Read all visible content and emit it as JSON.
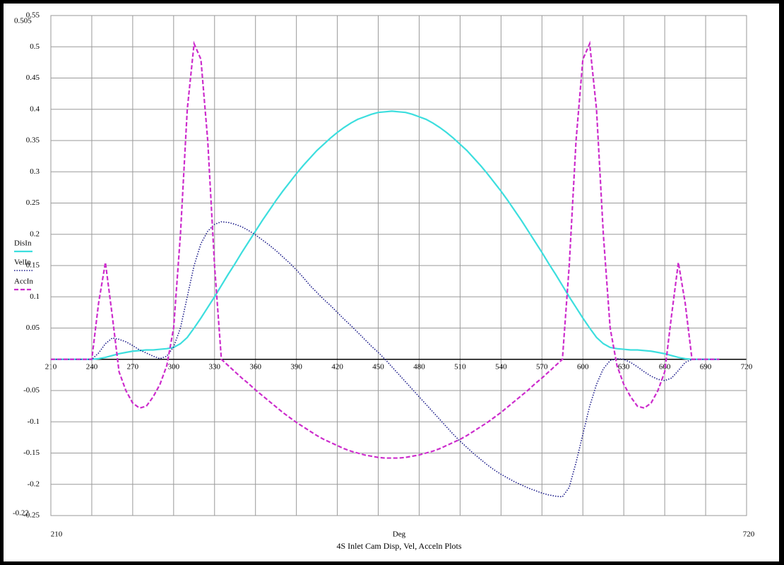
{
  "chart_data": {
    "type": "line",
    "title": "4S Inlet Cam Disp, Vel, Acceln Plots",
    "x_label": "Deg",
    "annotations": [
      "0.505",
      "-0.22"
    ],
    "xlim": [
      210,
      720
    ],
    "ylim": [
      -0.25,
      0.55
    ],
    "xticks": [
      210,
      240,
      270,
      300,
      330,
      360,
      390,
      420,
      450,
      480,
      510,
      540,
      570,
      600,
      630,
      660,
      690,
      720
    ],
    "yticks": [
      0.55,
      0.5,
      0.45,
      0.4,
      0.35,
      0.3,
      0.25,
      0.2,
      0.15,
      0.1,
      0.05,
      -0.05,
      -0.1,
      -0.15,
      -0.2,
      -0.25
    ],
    "grid": true,
    "legend": "left",
    "x": [
      210,
      220,
      230,
      240,
      245,
      250,
      255,
      260,
      265,
      270,
      275,
      280,
      285,
      290,
      295,
      300,
      305,
      310,
      315,
      320,
      325,
      330,
      335,
      340,
      345,
      350,
      355,
      360,
      365,
      370,
      375,
      380,
      385,
      390,
      395,
      400,
      405,
      410,
      415,
      420,
      425,
      430,
      435,
      440,
      445,
      450,
      455,
      460,
      465,
      470,
      475,
      480,
      485,
      490,
      495,
      500,
      505,
      510,
      515,
      520,
      525,
      530,
      535,
      540,
      545,
      550,
      555,
      560,
      565,
      570,
      575,
      580,
      585,
      590,
      595,
      600,
      605,
      610,
      615,
      620,
      625,
      630,
      635,
      640,
      645,
      650,
      655,
      660,
      665,
      670,
      675,
      680,
      690,
      700
    ],
    "series": [
      {
        "name": "DisIn",
        "color": "#3cdede",
        "style": "solid",
        "values": [
          0,
          0,
          0,
          0,
          0.001,
          0.003,
          0.006,
          0.009,
          0.011,
          0.013,
          0.014,
          0.015,
          0.015,
          0.016,
          0.017,
          0.019,
          0.025,
          0.035,
          0.05,
          0.066,
          0.083,
          0.1,
          0.118,
          0.136,
          0.153,
          0.171,
          0.188,
          0.205,
          0.222,
          0.238,
          0.254,
          0.269,
          0.283,
          0.297,
          0.31,
          0.322,
          0.334,
          0.344,
          0.354,
          0.363,
          0.371,
          0.378,
          0.384,
          0.388,
          0.392,
          0.395,
          0.396,
          0.397,
          0.396,
          0.395,
          0.392,
          0.388,
          0.384,
          0.378,
          0.371,
          0.363,
          0.354,
          0.344,
          0.334,
          0.322,
          0.31,
          0.297,
          0.283,
          0.269,
          0.254,
          0.238,
          0.222,
          0.205,
          0.188,
          0.171,
          0.153,
          0.136,
          0.118,
          0.1,
          0.083,
          0.066,
          0.05,
          0.035,
          0.025,
          0.019,
          0.017,
          0.016,
          0.015,
          0.015,
          0.014,
          0.013,
          0.011,
          0.009,
          0.006,
          0.003,
          0.001,
          0,
          0,
          0
        ]
      },
      {
        "name": "VelIn",
        "color": "#1c1c8a",
        "style": "dotted",
        "values": [
          0,
          0,
          0,
          0,
          0.01,
          0.025,
          0.034,
          0.032,
          0.028,
          0.022,
          0.015,
          0.01,
          0.005,
          0.001,
          0.005,
          0.02,
          0.05,
          0.1,
          0.15,
          0.185,
          0.205,
          0.216,
          0.22,
          0.219,
          0.216,
          0.212,
          0.206,
          0.199,
          0.191,
          0.183,
          0.174,
          0.164,
          0.154,
          0.143,
          0.131,
          0.118,
          0.107,
          0.096,
          0.086,
          0.075,
          0.064,
          0.054,
          0.043,
          0.032,
          0.021,
          0.011,
          0,
          -0.012,
          -0.024,
          -0.036,
          -0.048,
          -0.06,
          -0.072,
          -0.084,
          -0.096,
          -0.108,
          -0.12,
          -0.131,
          -0.141,
          -0.151,
          -0.16,
          -0.169,
          -0.177,
          -0.184,
          -0.19,
          -0.196,
          -0.201,
          -0.206,
          -0.21,
          -0.214,
          -0.217,
          -0.219,
          -0.22,
          -0.205,
          -0.165,
          -0.12,
          -0.075,
          -0.04,
          -0.015,
          -0.002,
          0.001,
          0,
          -0.005,
          -0.012,
          -0.02,
          -0.027,
          -0.032,
          -0.034,
          -0.03,
          -0.018,
          -0.005,
          0,
          0,
          0
        ]
      },
      {
        "name": "AccIn",
        "color": "#cc2ccc",
        "style": "dashed",
        "values": [
          0,
          0,
          0,
          0,
          0.09,
          0.155,
          0.07,
          -0.02,
          -0.05,
          -0.07,
          -0.078,
          -0.075,
          -0.06,
          -0.04,
          -0.01,
          0.05,
          0.2,
          0.4,
          0.505,
          0.48,
          0.35,
          0.15,
          0,
          -0.01,
          -0.02,
          -0.03,
          -0.039,
          -0.049,
          -0.058,
          -0.067,
          -0.076,
          -0.085,
          -0.093,
          -0.101,
          -0.108,
          -0.115,
          -0.122,
          -0.128,
          -0.133,
          -0.138,
          -0.143,
          -0.147,
          -0.15,
          -0.153,
          -0.155,
          -0.157,
          -0.158,
          -0.158,
          -0.158,
          -0.157,
          -0.155,
          -0.153,
          -0.15,
          -0.147,
          -0.143,
          -0.138,
          -0.133,
          -0.128,
          -0.122,
          -0.115,
          -0.108,
          -0.101,
          -0.093,
          -0.085,
          -0.076,
          -0.067,
          -0.058,
          -0.049,
          -0.039,
          -0.03,
          -0.02,
          -0.01,
          0,
          0.15,
          0.35,
          0.48,
          0.505,
          0.4,
          0.2,
          0.05,
          -0.01,
          -0.04,
          -0.06,
          -0.075,
          -0.078,
          -0.07,
          -0.05,
          -0.02,
          0.07,
          0.155,
          0.09,
          0,
          0,
          0
        ]
      }
    ]
  }
}
